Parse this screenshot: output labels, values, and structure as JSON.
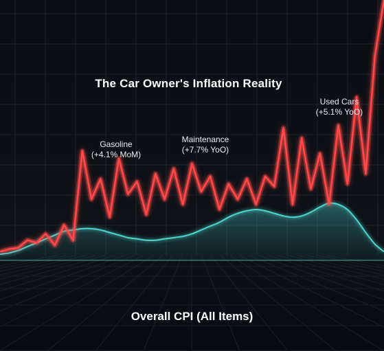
{
  "title": "The Car Owner's Inflation Reality",
  "footer_label": "Overall CPI (All Items)",
  "annotations": {
    "gasoline": {
      "name": "Gasoline",
      "change": "(+4.1% MoM)"
    },
    "maintenance": {
      "name": "Maintenance",
      "change": "(+7.7% YoO)"
    },
    "used_cars": {
      "name": "Used Cars",
      "change": "(+5.1% YoO)"
    }
  },
  "colors": {
    "background": "#0b0e13",
    "grid": "#1c232c",
    "car_costs_line": "#ff4a4a",
    "overall_cpi": "#4fd6d0"
  },
  "chart_data": {
    "type": "line",
    "title": "The Car Owner's Inflation Reality",
    "xlabel": "",
    "ylabel": "",
    "x": [
      0,
      1,
      2,
      3,
      4,
      5,
      6,
      7,
      8,
      9,
      10,
      11,
      12,
      13,
      14,
      15,
      16,
      17,
      18,
      19,
      20,
      21,
      22,
      23,
      24,
      25,
      26,
      27,
      28,
      29,
      30,
      31,
      32,
      33,
      34,
      35,
      36,
      37,
      38,
      39,
      40,
      41,
      42
    ],
    "xlim": [
      0,
      42
    ],
    "ylim": [
      0,
      100
    ],
    "grid": true,
    "legend": "none",
    "series": [
      {
        "key": "car_costs",
        "color": "#ff4a4a",
        "values": [
          1.5,
          2.5,
          3,
          6,
          5,
          8.5,
          4,
          12,
          6,
          41,
          22,
          30,
          15,
          38,
          24,
          29,
          16,
          32,
          22,
          34,
          20,
          36,
          25,
          31,
          18,
          28,
          22,
          30,
          20,
          31,
          27,
          50,
          20,
          46,
          26,
          40,
          20,
          51,
          28,
          62,
          32,
          78,
          100
        ]
      },
      {
        "key": "overall_cpi",
        "color": "#4fd6d0",
        "values": [
          0.5,
          1,
          2,
          3.5,
          5,
          6.5,
          8,
          9.5,
          10,
          10.5,
          10.5,
          10,
          9,
          8,
          7,
          6.5,
          6,
          6,
          6.5,
          7,
          7.5,
          8.5,
          10,
          11.5,
          13,
          15,
          16.5,
          17.5,
          18,
          17.5,
          16.5,
          15.5,
          15,
          15.5,
          17,
          19,
          20.5,
          20,
          18,
          14,
          9,
          4.5,
          1.5
        ]
      }
    ]
  }
}
